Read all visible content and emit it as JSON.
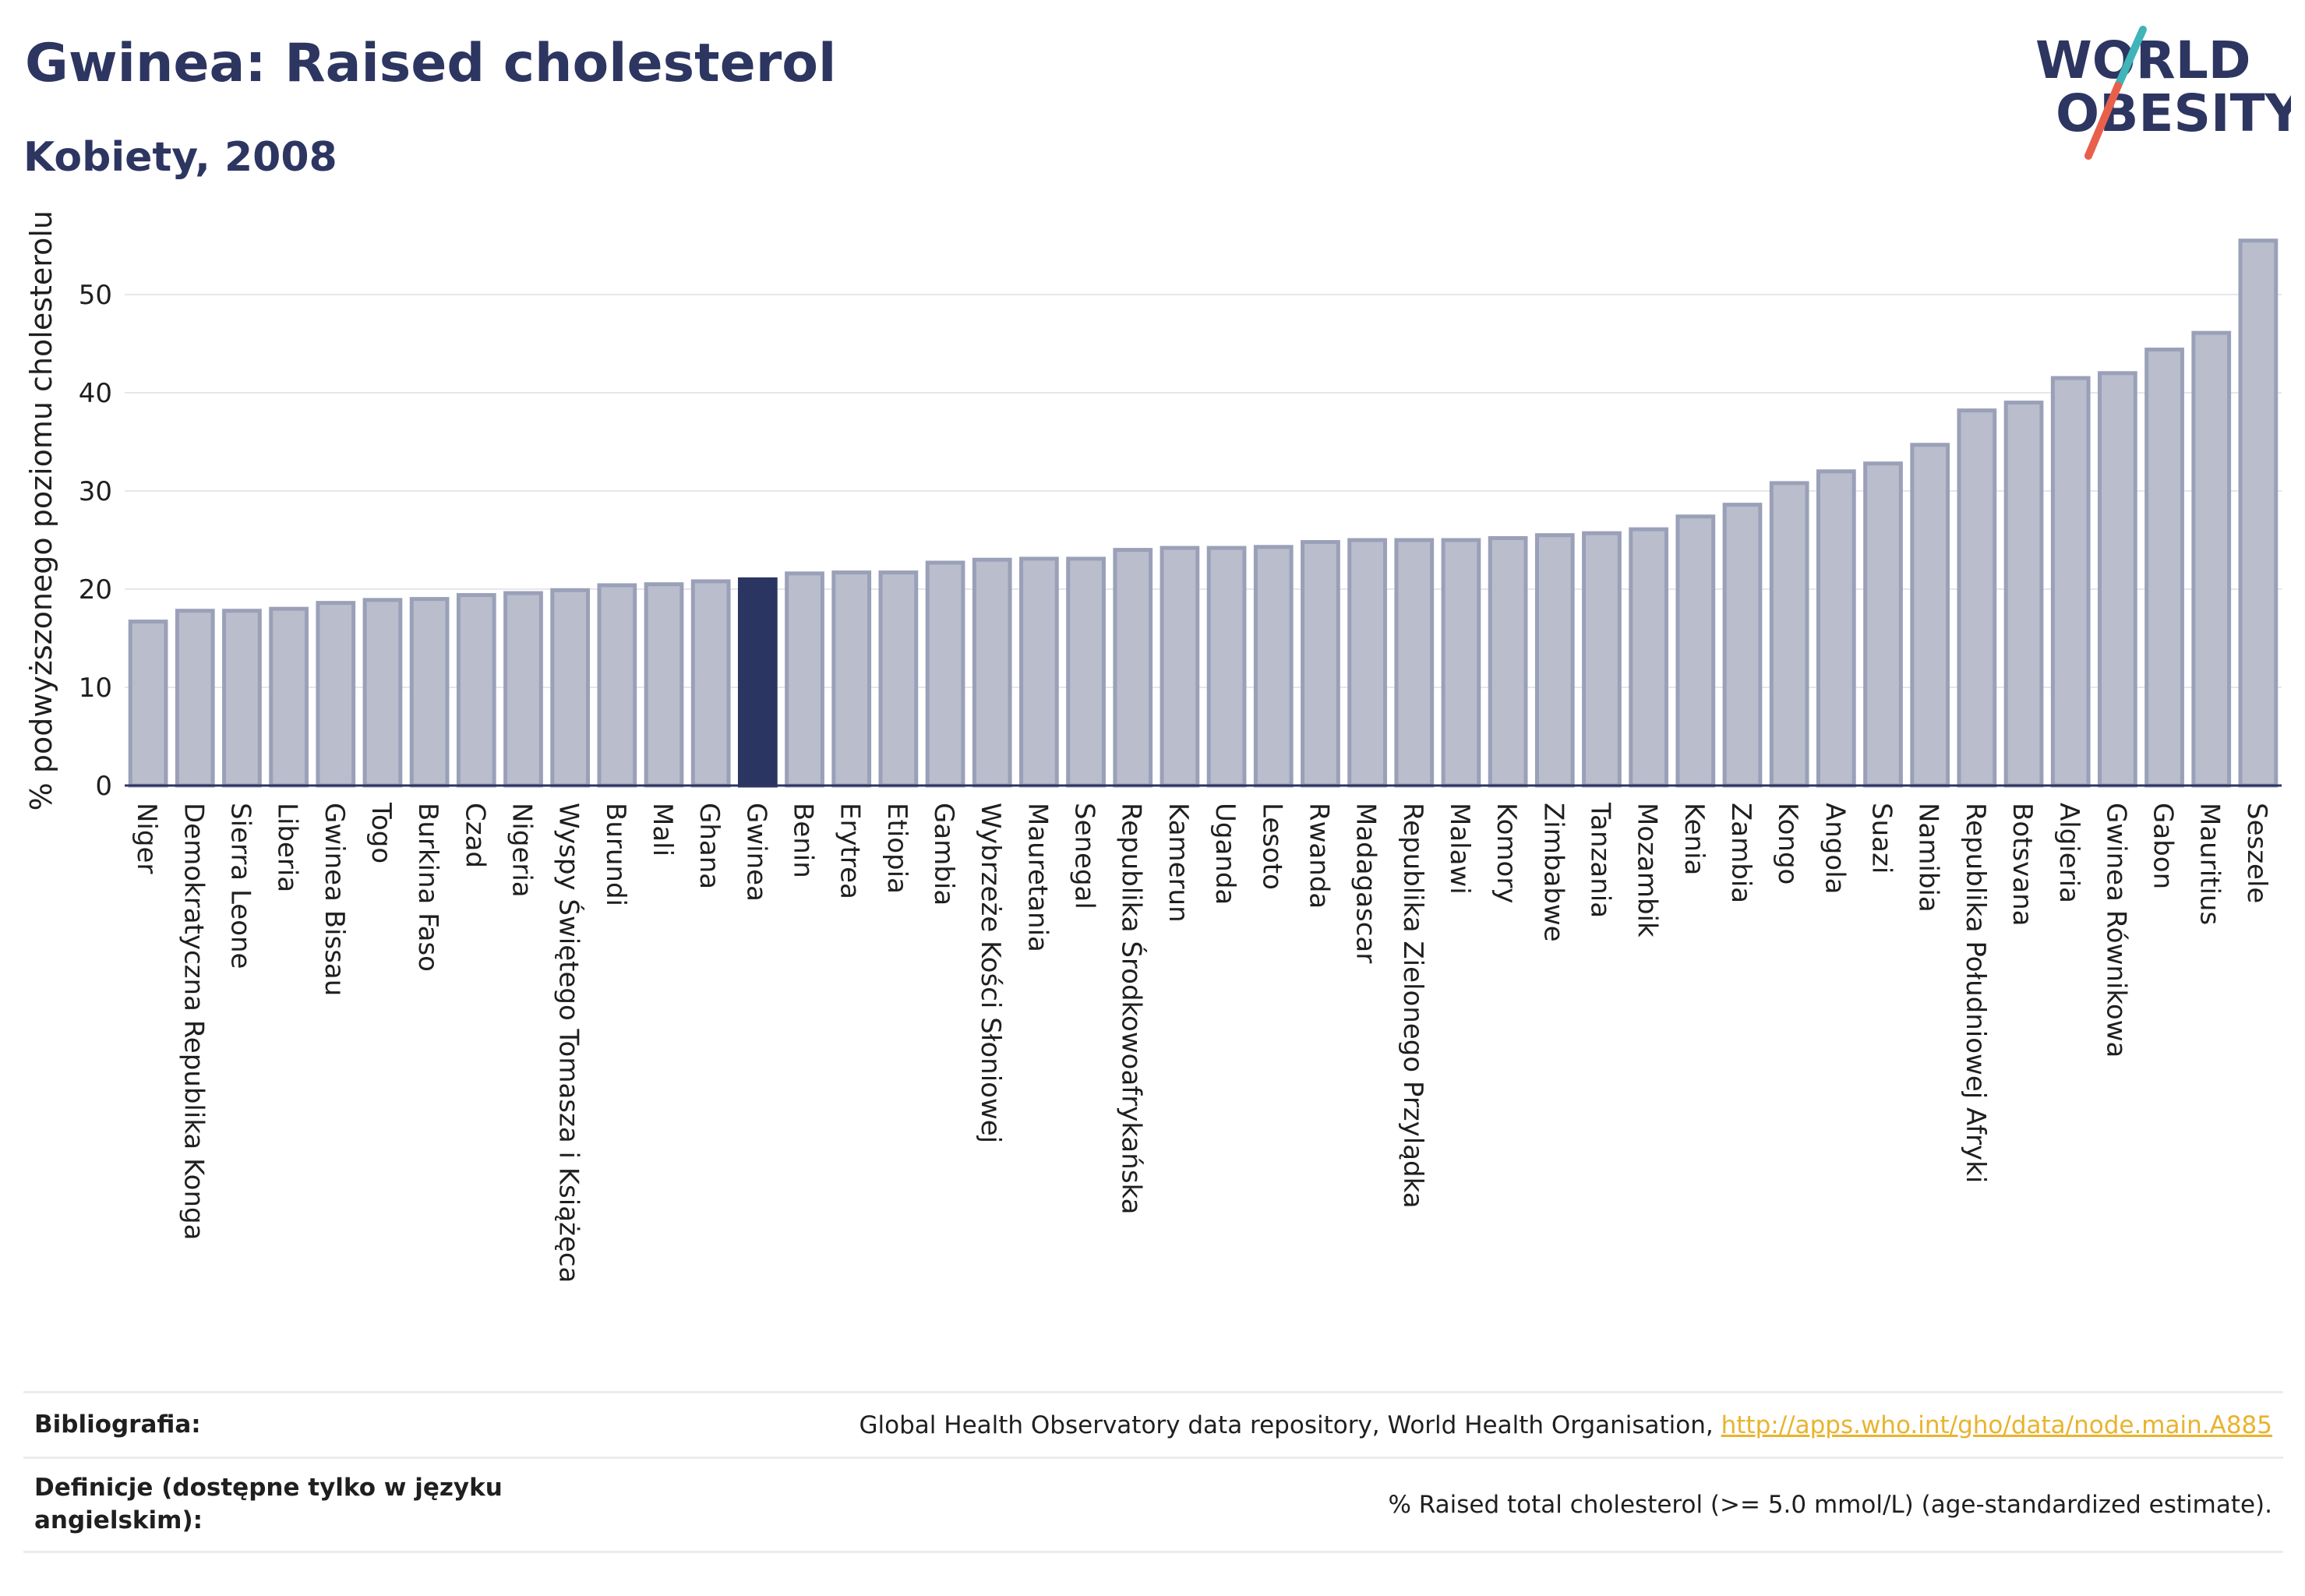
{
  "header": {
    "title": "Gwinea: Raised cholesterol",
    "subtitle": "Kobiety, 2008",
    "logo_line1": "WORLD",
    "logo_line2": "OBESITY"
  },
  "colors": {
    "bar": "#b9bdcc",
    "bar_border": "#9aa0b8",
    "highlight": "#2b3561",
    "text": "#2d3561",
    "link": "#e8b42e",
    "logo_teal": "#3fb4b9",
    "logo_red": "#e8604c"
  },
  "chart_data": {
    "type": "bar",
    "title": "Gwinea: Raised cholesterol",
    "subtitle": "Kobiety, 2008",
    "xlabel": "",
    "ylabel": "% podwyższonego poziomu cholesterolu",
    "ylim": [
      0,
      56
    ],
    "yticks": [
      0,
      10,
      20,
      30,
      40,
      50
    ],
    "grid": true,
    "highlight": "Gwinea",
    "categories": [
      "Niger",
      "Demokratyczna Republika Konga",
      "Sierra Leone",
      "Liberia",
      "Gwinea Bissau",
      "Togo",
      "Burkina Faso",
      "Czad",
      "Nigeria",
      "Wyspy Świętego Tomasza i Książęca",
      "Burundi",
      "Mali",
      "Ghana",
      "Gwinea",
      "Benin",
      "Erytrea",
      "Etiopia",
      "Gambia",
      "Wybrzeże Kości Słoniowej",
      "Mauretania",
      "Senegal",
      "Republika Środkowoafrykańska",
      "Kamerun",
      "Uganda",
      "Lesoto",
      "Rwanda",
      "Madagascar",
      "Republika Zielonego Przylądka",
      "Malawi",
      "Komory",
      "Zimbabwe",
      "Tanzania",
      "Mozambik",
      "Kenia",
      "Zambia",
      "Kongo",
      "Angola",
      "Suazi",
      "Namibia",
      "Republika Południowej Afryki",
      "Botsvana",
      "Algieria",
      "Gwinea Równikowa",
      "Gabon",
      "Mauritius",
      "Seszele"
    ],
    "values": [
      16.7,
      17.8,
      17.8,
      18.0,
      18.6,
      18.9,
      19.0,
      19.4,
      19.6,
      19.9,
      20.4,
      20.5,
      20.8,
      21.0,
      21.6,
      21.7,
      21.7,
      22.7,
      23.0,
      23.1,
      23.1,
      24.0,
      24.2,
      24.2,
      24.3,
      24.8,
      25.0,
      25.0,
      25.0,
      25.2,
      25.5,
      25.7,
      26.1,
      27.4,
      28.6,
      30.8,
      32.0,
      32.8,
      34.7,
      38.2,
      39.0,
      41.5,
      42.0,
      44.4,
      46.1,
      55.5
    ]
  },
  "references": {
    "bibliography_label": "Bibliografia:",
    "bibliography_text": "Global Health Observatory data repository, World Health Organisation, ",
    "bibliography_link": "http://apps.who.int/gho/data/node.main.A885",
    "definitions_label": "Definicje (dostępne tylko w języku angielskim):",
    "definitions_text": "% Raised total cholesterol (>= 5.0 mmol/L) (age-standardized estimate)."
  }
}
